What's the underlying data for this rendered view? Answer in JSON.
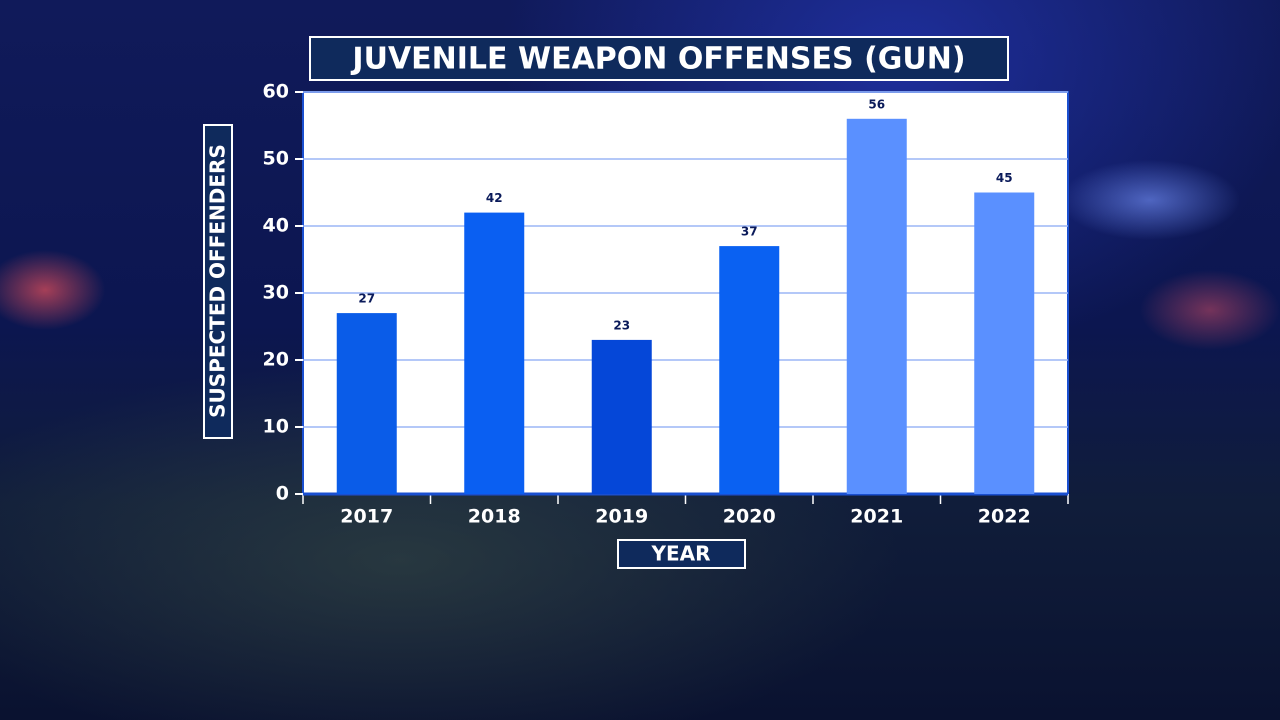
{
  "chart_data": {
    "type": "bar",
    "title": "JUVENILE WEAPON OFFENSES (GUN)",
    "x_label": "YEAR",
    "y_label": "SUSPECTED OFFENDERS",
    "categories": [
      "2017",
      "2018",
      "2019",
      "2020",
      "2021",
      "2022"
    ],
    "values": [
      27,
      42,
      23,
      37,
      56,
      45
    ],
    "colors": [
      "#0a5ce8",
      "#0a5ff2",
      "#0547d8",
      "#0a61f2",
      "#5a90ff",
      "#5a90ff"
    ],
    "ylim": [
      0,
      60
    ],
    "yticks": [
      0,
      10,
      20,
      30,
      40,
      50,
      60
    ],
    "grid": true,
    "grid_color": "#9cb6f5"
  }
}
